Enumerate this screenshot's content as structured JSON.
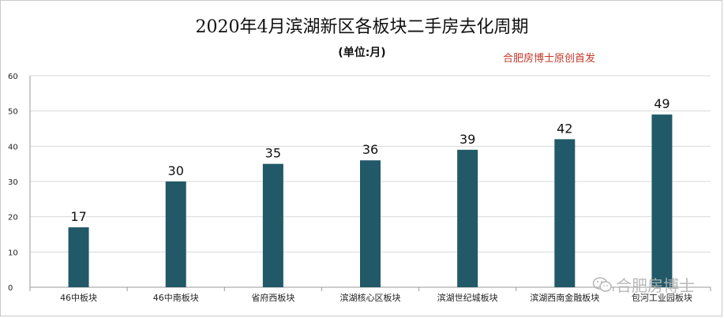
{
  "watermark": "合肥房博士",
  "credit": "合肥房博士原创首发",
  "chart_data": {
    "type": "bar",
    "title": "2020年4月滨湖新区各板块二手房去化周期",
    "subtitle": "(单位:月)",
    "categories": [
      "46中板块",
      "46中南板块",
      "省府西板块",
      "滨湖核心区板块",
      "滨湖世纪城板块",
      "滨湖西南金融板块",
      "包河工业园板块"
    ],
    "values": [
      17,
      30,
      35,
      36,
      39,
      42,
      49
    ],
    "ylim": [
      0,
      60
    ],
    "yticks": [
      0,
      10,
      20,
      30,
      40,
      50,
      60
    ],
    "grid": true,
    "legend": "none",
    "bar_color": "#215968",
    "grid_color": "#d9d9d9"
  }
}
